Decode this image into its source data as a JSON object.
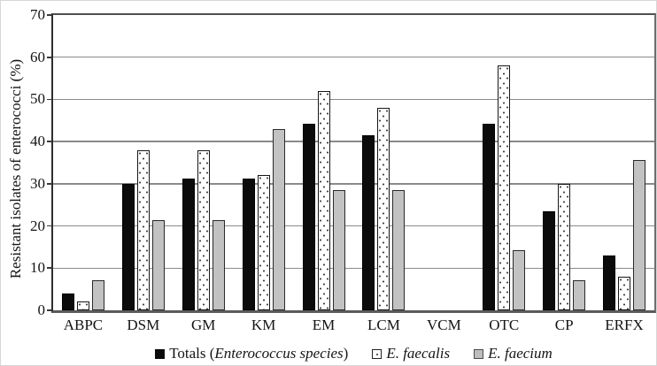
{
  "chart_data": {
    "type": "bar",
    "title": "",
    "xlabel": "",
    "ylabel": "Resistant isolates of enterococci (%)",
    "ylim": [
      0,
      70
    ],
    "yticks": [
      0,
      10,
      20,
      30,
      40,
      50,
      60,
      70
    ],
    "grid": true,
    "legend_position": "bottom",
    "categories": [
      "ABPC",
      "DSM",
      "GM",
      "KM",
      "EM",
      "LCM",
      "VCM",
      "OTC",
      "CP",
      "ERFX"
    ],
    "series": [
      {
        "name": "Totals (Enterococcus species)",
        "id": "totals",
        "style": "solid-black",
        "color": "#0b0b0b",
        "label": {
          "prefix": "Totals (",
          "italic": "Enterococcus species",
          "suffix": ")"
        },
        "values": [
          3.9,
          29.9,
          31.2,
          31.2,
          44.2,
          41.6,
          0,
          44.2,
          23.4,
          13.0
        ]
      },
      {
        "name": "E. faecalis",
        "id": "e-faecalis",
        "style": "dotted-white",
        "color": "#ffffff",
        "label": {
          "prefix": "",
          "italic": "E. faecalis",
          "suffix": ""
        },
        "values": [
          2,
          38,
          38,
          32,
          52,
          48,
          0,
          58,
          30,
          8
        ]
      },
      {
        "name": "E. faecium",
        "id": "e-faecium",
        "style": "solid-gray",
        "color": "#c2c2c2",
        "label": {
          "prefix": "",
          "italic": "E. faecium",
          "suffix": ""
        },
        "values": [
          7.1,
          21.4,
          21.4,
          42.9,
          28.6,
          28.6,
          0,
          14.3,
          7.1,
          35.7
        ]
      }
    ],
    "colors": {
      "grid": "#8a8a8a",
      "axis": "#3a3a3a",
      "bar_border": "#161616"
    }
  }
}
